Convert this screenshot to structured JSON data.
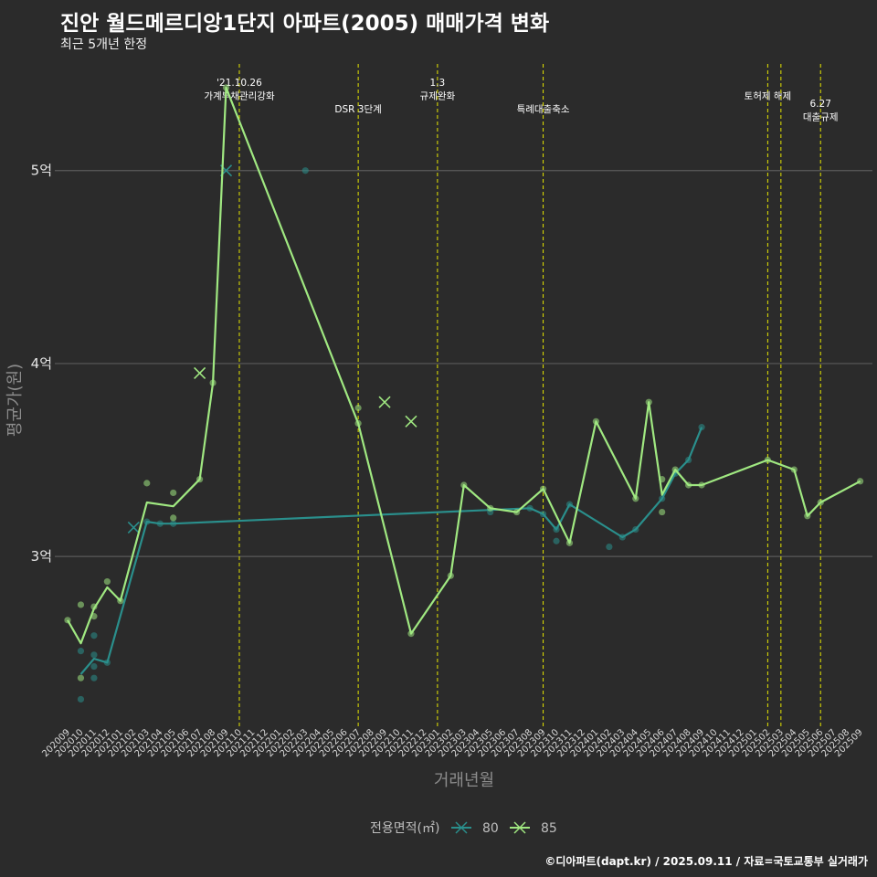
{
  "title": "진안 월드메르디앙1단지 아파트(2005) 매매가격 변화",
  "subtitle": "최근 5개년 한정",
  "caption": "©디아파트(dapt.kr) / 2025.09.11 / 자료=국토교통부 실거래가",
  "chart_data": {
    "type": "line",
    "xlabel": "거래년월",
    "ylabel": "평균가(원)",
    "x_ticks": [
      "202009",
      "202010",
      "202011",
      "202012",
      "202101",
      "202102",
      "202103",
      "202104",
      "202105",
      "202106",
      "202107",
      "202108",
      "202109",
      "202110",
      "202111",
      "202112",
      "202201",
      "202202",
      "202203",
      "202204",
      "202205",
      "202206",
      "202207",
      "202208",
      "202209",
      "202210",
      "202211",
      "202212",
      "202301",
      "202302",
      "202303",
      "202304",
      "202305",
      "202306",
      "202307",
      "202308",
      "202309",
      "202310",
      "202311",
      "202312",
      "202401",
      "202402",
      "202403",
      "202404",
      "202405",
      "202406",
      "202407",
      "202408",
      "202409",
      "202410",
      "202411",
      "202412",
      "202501",
      "202502",
      "202503",
      "202504",
      "202505",
      "202506",
      "202507",
      "202508",
      "202509"
    ],
    "y_ticks": [
      {
        "value": 3,
        "label": "3억"
      },
      {
        "value": 4,
        "label": "4억"
      },
      {
        "value": 5,
        "label": "5억"
      }
    ],
    "ylim": [
      2.12,
      5.6
    ],
    "grid": true,
    "legend_title": "전용면적(㎡)",
    "legend_position": "bottom",
    "events": [
      {
        "x": "202110",
        "lines": [
          "'21.10.26",
          "가계부채관리강화"
        ],
        "level": 0
      },
      {
        "x": "202207",
        "lines": [
          "DSR 3단계"
        ],
        "level": 2
      },
      {
        "x": "202301",
        "lines": [
          "1.3",
          "규제완화"
        ],
        "level": 0
      },
      {
        "x": "202309",
        "lines": [
          "특례대출축소"
        ],
        "level": 2
      },
      {
        "x": "202502",
        "lines": [
          "토허제 해제"
        ],
        "level": 1
      },
      {
        "x": "202503",
        "lines": [],
        "level": 1
      },
      {
        "x": "202506",
        "lines": [
          "6.27",
          "대출규제"
        ],
        "level": 1.6
      }
    ],
    "series": [
      {
        "name": "80",
        "color": "#2a8f8c",
        "line": [
          [
            "202010",
            2.39
          ],
          [
            "202011",
            2.47
          ],
          [
            "202012",
            2.45
          ],
          [
            "202103",
            3.18
          ],
          [
            "202104",
            3.17
          ],
          [
            "202105",
            3.17
          ],
          [
            "202308",
            3.25
          ],
          [
            "202309",
            3.22
          ],
          [
            "202310",
            3.14
          ],
          [
            "202311",
            3.27
          ],
          [
            "202403",
            3.1
          ],
          [
            "202404",
            3.14
          ],
          [
            "202406",
            3.3
          ],
          [
            "202407",
            3.43
          ],
          [
            "202408",
            3.5
          ],
          [
            "202409",
            3.67
          ]
        ],
        "points": [
          [
            "202010",
            2.26
          ],
          [
            "202010",
            2.51
          ],
          [
            "202011",
            2.37
          ],
          [
            "202011",
            2.43
          ],
          [
            "202011",
            2.49
          ],
          [
            "202011",
            2.59
          ],
          [
            "202012",
            2.45
          ],
          [
            "202103",
            3.18
          ],
          [
            "202104",
            3.17
          ],
          [
            "202105",
            3.17
          ],
          [
            "202203",
            5.0
          ],
          [
            "202305",
            3.23
          ],
          [
            "202308",
            3.25
          ],
          [
            "202309",
            3.22
          ],
          [
            "202310",
            3.14
          ],
          [
            "202310",
            3.08
          ],
          [
            "202311",
            3.27
          ],
          [
            "202402",
            3.05
          ],
          [
            "202403",
            3.1
          ],
          [
            "202404",
            3.14
          ],
          [
            "202406",
            3.3
          ],
          [
            "202407",
            3.43
          ],
          [
            "202408",
            3.5
          ],
          [
            "202409",
            3.67
          ]
        ],
        "crosses": [
          [
            "202102",
            3.15
          ],
          [
            "202109",
            5.0
          ]
        ]
      },
      {
        "name": "85",
        "color": "#a0e881",
        "line": [
          [
            "202009",
            2.67
          ],
          [
            "202010",
            2.55
          ],
          [
            "202011",
            2.73
          ],
          [
            "202012",
            2.84
          ],
          [
            "202101",
            2.77
          ],
          [
            "202103",
            3.28
          ],
          [
            "202105",
            3.26
          ],
          [
            "202107",
            3.4
          ],
          [
            "202108",
            3.9
          ],
          [
            "202109",
            5.43
          ],
          [
            "202207",
            3.69
          ],
          [
            "202211",
            2.6
          ],
          [
            "202302",
            2.9
          ],
          [
            "202303",
            3.37
          ],
          [
            "202305",
            3.25
          ],
          [
            "202307",
            3.23
          ],
          [
            "202309",
            3.35
          ],
          [
            "202311",
            3.07
          ],
          [
            "202401",
            3.7
          ],
          [
            "202404",
            3.3
          ],
          [
            "202405",
            3.8
          ],
          [
            "202406",
            3.32
          ],
          [
            "202407",
            3.45
          ],
          [
            "202408",
            3.37
          ],
          [
            "202409",
            3.37
          ],
          [
            "202502",
            3.5
          ],
          [
            "202504",
            3.45
          ],
          [
            "202505",
            3.21
          ],
          [
            "202506",
            3.28
          ],
          [
            "202509",
            3.39
          ]
        ],
        "points": [
          [
            "202009",
            2.67
          ],
          [
            "202010",
            2.37
          ],
          [
            "202010",
            2.75
          ],
          [
            "202011",
            2.69
          ],
          [
            "202011",
            2.74
          ],
          [
            "202012",
            2.87
          ],
          [
            "202101",
            2.77
          ],
          [
            "202103",
            3.38
          ],
          [
            "202105",
            3.2
          ],
          [
            "202105",
            3.33
          ],
          [
            "202107",
            3.4
          ],
          [
            "202108",
            3.9
          ],
          [
            "202109",
            5.43
          ],
          [
            "202207",
            3.69
          ],
          [
            "202207",
            3.77
          ],
          [
            "202211",
            2.6
          ],
          [
            "202302",
            2.9
          ],
          [
            "202303",
            3.37
          ],
          [
            "202305",
            3.25
          ],
          [
            "202307",
            3.23
          ],
          [
            "202309",
            3.35
          ],
          [
            "202311",
            3.07
          ],
          [
            "202401",
            3.7
          ],
          [
            "202404",
            3.3
          ],
          [
            "202405",
            3.8
          ],
          [
            "202406",
            3.4
          ],
          [
            "202406",
            3.23
          ],
          [
            "202407",
            3.45
          ],
          [
            "202408",
            3.37
          ],
          [
            "202409",
            3.37
          ],
          [
            "202502",
            3.5
          ],
          [
            "202504",
            3.45
          ],
          [
            "202505",
            3.21
          ],
          [
            "202506",
            3.28
          ],
          [
            "202509",
            3.39
          ]
        ],
        "crosses": [
          [
            "202107",
            3.95
          ],
          [
            "202209",
            3.8
          ],
          [
            "202211",
            3.7
          ]
        ]
      }
    ]
  }
}
